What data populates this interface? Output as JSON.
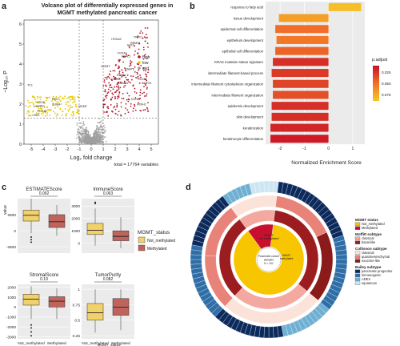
{
  "panels": {
    "a": "a",
    "b": "b",
    "c": "c",
    "d": "d"
  },
  "volcano": {
    "title_lines": [
      "Volcano plot of differentially expressed genes in",
      "MGMT methylated pancreatic cancer"
    ],
    "xlabel": "Log₂ fold change",
    "ylabel": "−Log₁₀ P",
    "caption": "total = 17764 variables",
    "x_ticks": [
      -5,
      -4,
      -3,
      -2,
      -1,
      0,
      1,
      2,
      3,
      4,
      5
    ],
    "y_ticks": [
      0,
      1,
      2,
      3,
      4,
      5,
      6
    ],
    "legend": [
      {
        "label": "high",
        "color": "#b2182b"
      },
      {
        "label": "low",
        "color": "#e6c800"
      },
      {
        "label": "mid",
        "color": "#9a9a9a"
      }
    ],
    "gene_labels": [
      {
        "text": "HOXA2",
        "x": 2.1,
        "y": 5.2
      },
      {
        "text": "TFBC1",
        "x": 3.9,
        "y": 5.3
      },
      {
        "text": "BRMS1",
        "x": 3.7,
        "y": 5.0
      },
      {
        "text": "FJX1",
        "x": 3.3,
        "y": 4.9
      },
      {
        "text": "FOXA1",
        "x": 2.6,
        "y": 4.5
      },
      {
        "text": "ACHL1",
        "x": 2.9,
        "y": 4.35
      },
      {
        "text": "MGMT",
        "x": 1.2,
        "y": 3.85
      },
      {
        "text": "RSAP5",
        "x": 3.2,
        "y": 3.7
      },
      {
        "text": "FFAR4",
        "x": 2.5,
        "y": 3.4
      },
      {
        "text": "CENK",
        "x": 2.1,
        "y": 3.2
      },
      {
        "text": "KIF2X",
        "x": 4.7,
        "y": 3.0
      },
      {
        "text": "ADAM10",
        "x": 2.6,
        "y": 3.0
      },
      {
        "text": "KLK12",
        "x": 4.3,
        "y": 3.2
      },
      {
        "text": "CLEA1",
        "x": 3.7,
        "y": 2.2
      },
      {
        "text": "ATRH1",
        "x": 4.2,
        "y": 1.95
      },
      {
        "text": "TC1",
        "x": -5.1,
        "y": 2.9
      },
      {
        "text": "FAT2",
        "x": -3.0,
        "y": 2.2
      },
      {
        "text": "CDSS",
        "x": -4.2,
        "y": 2.05
      },
      {
        "text": "HNRPD",
        "x": -4.3,
        "y": 1.85
      },
      {
        "text": "GJIB4",
        "x": -2.9,
        "y": 1.95
      },
      {
        "text": "FOXJ6",
        "x": -4.1,
        "y": 1.6
      },
      {
        "text": "LRP1",
        "x": -4.6,
        "y": 1.4
      },
      {
        "text": "MGMT",
        "x": -0.7,
        "y": 1.85
      }
    ]
  },
  "enrichment": {
    "xlabel": "Normalized Enrichment Score",
    "x_ticks": [
      -2,
      -1,
      0,
      1
    ],
    "legend_title": "p.adjust",
    "legend_ticks": [
      "0.025",
      "0.050",
      "0.075"
    ],
    "terms": [
      {
        "name": "response to fatty acid",
        "nes": 1.35,
        "padj": 0.085
      },
      {
        "name": "tissue development",
        "nes": -2.05,
        "padj": 0.07
      },
      {
        "name": "epidermal cell differentiation",
        "nes": -2.2,
        "padj": 0.045
      },
      {
        "name": "epithelium development",
        "nes": -2.15,
        "padj": 0.05
      },
      {
        "name": "epithelial cell differentiation",
        "nes": -2.2,
        "padj": 0.04
      },
      {
        "name": "KRAS mutation status signature",
        "nes": -2.3,
        "padj": 0.015
      },
      {
        "name": "intermediate filament-based process",
        "nes": -2.35,
        "padj": 0.02
      },
      {
        "name": "intermediate filament cytoskeleton organization",
        "nes": -2.3,
        "padj": 0.025
      },
      {
        "name": "intermediate filament organization",
        "nes": -2.3,
        "padj": 0.03
      },
      {
        "name": "epidermis development",
        "nes": -2.35,
        "padj": 0.015
      },
      {
        "name": "skin development",
        "nes": -2.35,
        "padj": 0.015
      },
      {
        "name": "keratinization",
        "nes": -2.4,
        "padj": 0.01
      },
      {
        "name": "keratinocyte differentiation",
        "nes": -2.4,
        "padj": 0.005
      }
    ]
  },
  "boxplots": {
    "ylabel": "value",
    "legend_title": "MGMT_status",
    "legend": [
      {
        "label": "Not_methylated",
        "color": "#f2d16b"
      },
      {
        "label": "Methylated",
        "color": "#c0635d"
      }
    ],
    "x_categories": [
      "Not_methylated",
      "Methylated"
    ],
    "x_caption": "MGMT_status",
    "subplots": [
      {
        "title": "ESTIMATEScore",
        "pval": "0.092",
        "yticks": [
          -2500,
          0,
          2500
        ],
        "ylim": [
          -3500,
          5000
        ],
        "groups": [
          {
            "q1": 1500,
            "med": 2400,
            "q3": 3200,
            "lo": -400,
            "hi": 5000,
            "out": [
              -1000,
              -1400,
              -1800
            ]
          },
          {
            "q1": 500,
            "med": 1400,
            "q3": 2500,
            "lo": -800,
            "hi": 4000,
            "out": []
          }
        ]
      },
      {
        "title": "ImmuneScore",
        "pval": "0.063",
        "yticks": [
          0,
          1000,
          2000,
          3000
        ],
        "ylim": [
          -800,
          3600
        ],
        "groups": [
          {
            "q1": 700,
            "med": 1050,
            "q3": 1600,
            "lo": -200,
            "hi": 2800,
            "out": [
              3200,
              3300
            ]
          },
          {
            "q1": 200,
            "med": 550,
            "q3": 1000,
            "lo": -400,
            "hi": 2100,
            "out": []
          }
        ]
      },
      {
        "title": "StromalScore",
        "pval": "0.19",
        "yticks": [
          -3000,
          -2000,
          -1000,
          0,
          1000,
          2000
        ],
        "ylim": [
          -3200,
          2300
        ],
        "groups": [
          {
            "q1": 200,
            "med": 800,
            "q3": 1300,
            "lo": -1200,
            "hi": 2100,
            "out": [
              -1800,
              -2100,
              -2500,
              -2900
            ]
          },
          {
            "q1": 0,
            "med": 600,
            "q3": 1050,
            "lo": -1200,
            "hi": 1900,
            "out": []
          }
        ]
      },
      {
        "title": "TumorPurity",
        "pval": "0.082",
        "yticks": [
          0.25,
          0.5,
          0.75,
          1.0
        ],
        "ylim": [
          0.2,
          1.08
        ],
        "groups": [
          {
            "q1": 0.5,
            "med": 0.62,
            "q3": 0.77,
            "lo": 0.3,
            "hi": 1.0,
            "out": []
          },
          {
            "q1": 0.58,
            "med": 0.71,
            "q3": 0.85,
            "lo": 0.34,
            "hi": 1.0,
            "out": []
          }
        ]
      }
    ]
  },
  "sunburst": {
    "center_label": [
      "Pancreatic cancer",
      "samples",
      "N = 101"
    ],
    "inner_labels": {
      "not_methylated": "MGMT\nnot methylated",
      "methylated": "MGMT\nmethylated"
    },
    "legend": [
      {
        "title": "MGMT status",
        "items": [
          {
            "label": "Not_methylated",
            "color": "#f7c600"
          },
          {
            "label": "Methylated",
            "color": "#c8102e"
          }
        ]
      },
      {
        "title": "Moffitt subtype",
        "items": [
          {
            "label": "classical",
            "color": "#f4a9a0"
          },
          {
            "label": "basal-like",
            "color": "#9b1d20"
          }
        ]
      },
      {
        "title": "Collisson subtype",
        "items": [
          {
            "label": "classical",
            "color": "#fbe3d9"
          },
          {
            "label": "quasimesenchymal",
            "color": "#e8837a"
          },
          {
            "label": "exocrine-like",
            "color": "#8b1a1a"
          }
        ]
      },
      {
        "title": "Bailey subtype",
        "items": [
          {
            "label": "pancreatic progenitor",
            "color": "#0d2a5c"
          },
          {
            "label": "immunogenic",
            "color": "#2f6ea6"
          },
          {
            "label": "ADEX",
            "color": "#6fb0d2"
          },
          {
            "label": "squamous",
            "color": "#cde6f2"
          }
        ]
      }
    ]
  }
}
